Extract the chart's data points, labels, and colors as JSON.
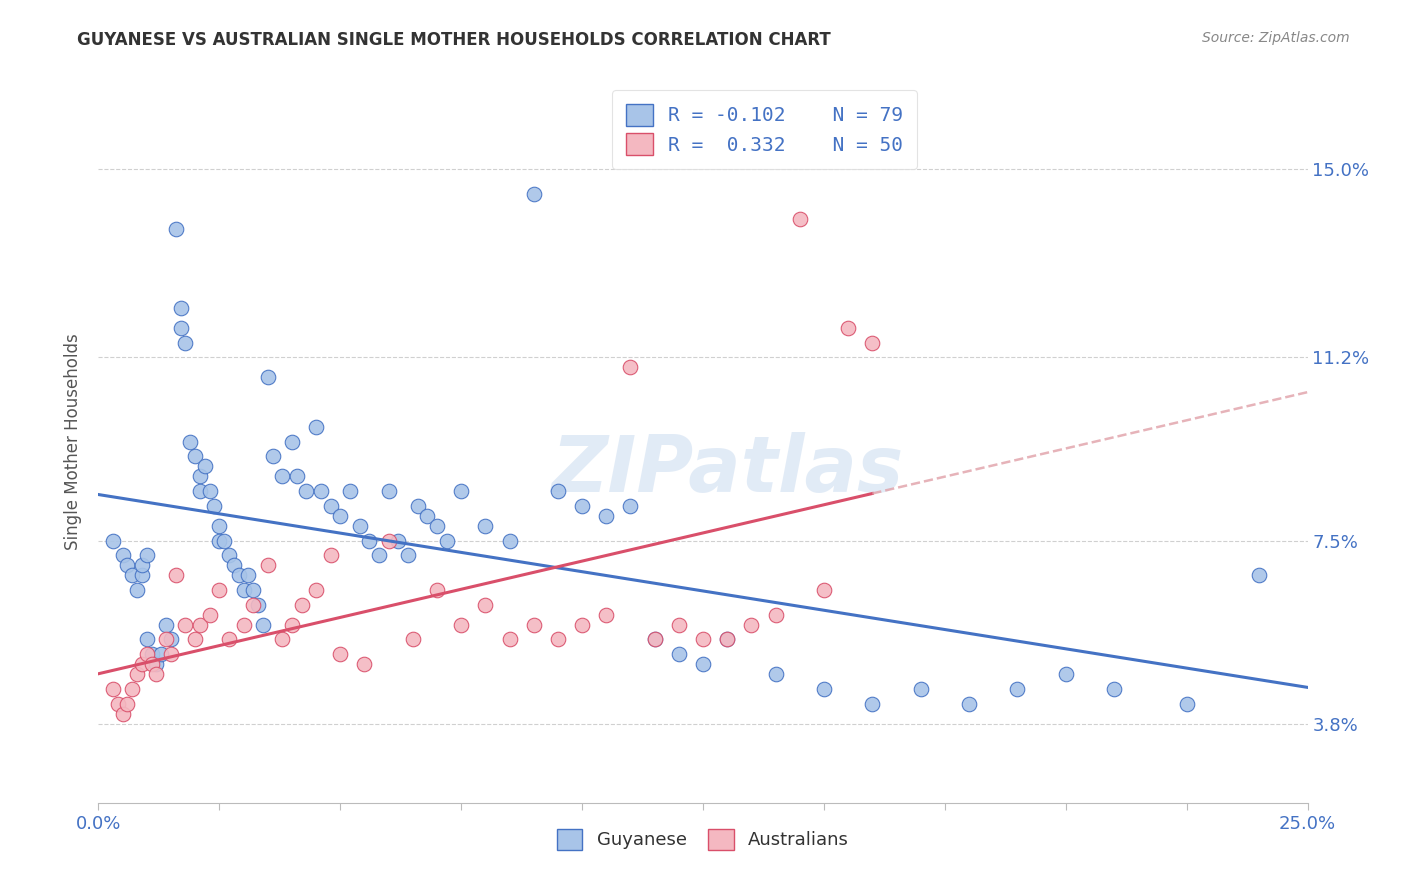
{
  "title": "GUYANESE VS AUSTRALIAN SINGLE MOTHER HOUSEHOLDS CORRELATION CHART",
  "source": "Source: ZipAtlas.com",
  "ylabel": "Single Mother Households",
  "ytick_labels": [
    "3.8%",
    "7.5%",
    "11.2%",
    "15.0%"
  ],
  "ytick_vals": [
    3.8,
    7.5,
    11.2,
    15.0
  ],
  "xlim": [
    0.0,
    25.0
  ],
  "ylim": [
    2.2,
    16.8
  ],
  "legend_r1": "R = -0.102",
  "legend_n1": "N = 79",
  "legend_r2": "R =  0.332",
  "legend_n2": "N = 50",
  "color_blue": "#a8c4e8",
  "color_pink": "#f4b8c1",
  "color_line_blue": "#4472c4",
  "color_line_pink": "#d94f6a",
  "color_line_dashed": "#e0a0a8",
  "watermark": "ZIPatlas",
  "tick_color": "#4472c4",
  "grid_color": "#d0d0d0",
  "guyanese_x": [
    0.3,
    0.5,
    0.6,
    0.7,
    0.8,
    0.9,
    0.9,
    1.0,
    1.0,
    1.1,
    1.2,
    1.3,
    1.4,
    1.5,
    1.6,
    1.7,
    1.7,
    1.8,
    1.9,
    2.0,
    2.1,
    2.1,
    2.2,
    2.3,
    2.4,
    2.5,
    2.5,
    2.6,
    2.7,
    2.8,
    2.9,
    3.0,
    3.1,
    3.2,
    3.3,
    3.4,
    3.5,
    3.6,
    3.8,
    4.0,
    4.1,
    4.3,
    4.5,
    4.6,
    4.8,
    5.0,
    5.2,
    5.4,
    5.6,
    5.8,
    6.0,
    6.2,
    6.4,
    6.6,
    6.8,
    7.0,
    7.2,
    7.5,
    8.0,
    8.5,
    9.0,
    9.5,
    10.0,
    10.5,
    11.0,
    11.5,
    12.0,
    12.5,
    13.0,
    14.0,
    15.0,
    16.0,
    17.0,
    18.0,
    19.0,
    20.0,
    21.0,
    22.5,
    24.0
  ],
  "guyanese_y": [
    7.5,
    7.2,
    7.0,
    6.8,
    6.5,
    6.8,
    7.0,
    7.2,
    5.5,
    5.2,
    5.0,
    5.2,
    5.8,
    5.5,
    13.8,
    12.2,
    11.8,
    11.5,
    9.5,
    9.2,
    8.8,
    8.5,
    9.0,
    8.5,
    8.2,
    7.8,
    7.5,
    7.5,
    7.2,
    7.0,
    6.8,
    6.5,
    6.8,
    6.5,
    6.2,
    5.8,
    10.8,
    9.2,
    8.8,
    9.5,
    8.8,
    8.5,
    9.8,
    8.5,
    8.2,
    8.0,
    8.5,
    7.8,
    7.5,
    7.2,
    8.5,
    7.5,
    7.2,
    8.2,
    8.0,
    7.8,
    7.5,
    8.5,
    7.8,
    7.5,
    14.5,
    8.5,
    8.2,
    8.0,
    8.2,
    5.5,
    5.2,
    5.0,
    5.5,
    4.8,
    4.5,
    4.2,
    4.5,
    4.2,
    4.5,
    4.8,
    4.5,
    4.2,
    6.8
  ],
  "australians_x": [
    0.3,
    0.4,
    0.5,
    0.6,
    0.7,
    0.8,
    0.9,
    1.0,
    1.1,
    1.2,
    1.4,
    1.5,
    1.6,
    1.8,
    2.0,
    2.1,
    2.3,
    2.5,
    2.7,
    3.0,
    3.2,
    3.5,
    3.8,
    4.0,
    4.2,
    4.5,
    4.8,
    5.0,
    5.5,
    6.0,
    6.5,
    7.0,
    7.5,
    8.0,
    8.5,
    9.0,
    9.5,
    10.0,
    10.5,
    11.0,
    11.5,
    12.0,
    12.5,
    13.0,
    13.5,
    14.0,
    14.5,
    15.0,
    15.5,
    16.0
  ],
  "australians_y": [
    4.5,
    4.2,
    4.0,
    4.2,
    4.5,
    4.8,
    5.0,
    5.2,
    5.0,
    4.8,
    5.5,
    5.2,
    6.8,
    5.8,
    5.5,
    5.8,
    6.0,
    6.5,
    5.5,
    5.8,
    6.2,
    7.0,
    5.5,
    5.8,
    6.2,
    6.5,
    7.2,
    5.2,
    5.0,
    7.5,
    5.5,
    6.5,
    5.8,
    6.2,
    5.5,
    5.8,
    5.5,
    5.8,
    6.0,
    11.0,
    5.5,
    5.8,
    5.5,
    5.5,
    5.8,
    6.0,
    14.0,
    6.5,
    11.8,
    11.5
  ]
}
